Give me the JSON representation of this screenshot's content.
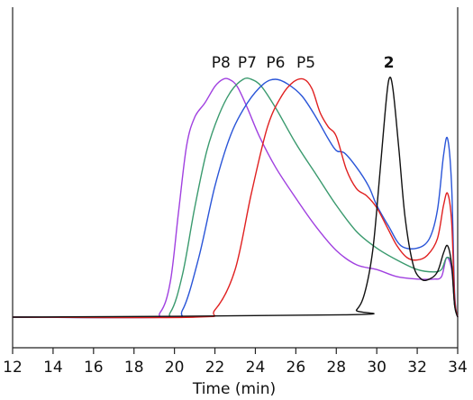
{
  "chart_data": {
    "type": "line",
    "xlabel": "Time (min)",
    "ylabel": "",
    "xlim": [
      12,
      34
    ],
    "ylim": [
      0,
      1.15
    ],
    "x_ticks": [
      12,
      14,
      16,
      18,
      20,
      22,
      24,
      26,
      28,
      30,
      32,
      34
    ],
    "grid": false,
    "legend": "none",
    "annotations": [
      {
        "text": "P8",
        "x": 22.3,
        "bold": false
      },
      {
        "text": "P7",
        "x": 23.6,
        "bold": false
      },
      {
        "text": "P6",
        "x": 25.0,
        "bold": false
      },
      {
        "text": "P5",
        "x": 26.5,
        "bold": false
      },
      {
        "text": "2",
        "x": 30.6,
        "bold": true
      }
    ],
    "series": [
      {
        "name": "P8",
        "color": "#a040e0",
        "x": [
          12,
          18.5,
          19.3,
          19.8,
          20.2,
          20.6,
          21.0,
          21.5,
          22.0,
          22.4,
          22.7,
          23.1,
          23.6,
          24.2,
          25.0,
          26.0,
          27.0,
          28.0,
          29.0,
          30.0,
          31.0,
          32.0,
          32.8,
          33.2,
          33.45,
          33.7,
          33.85,
          34
        ],
        "y": [
          0.0,
          0.0,
          0.02,
          0.15,
          0.44,
          0.72,
          0.84,
          0.9,
          0.97,
          1.0,
          1.0,
          0.97,
          0.88,
          0.76,
          0.63,
          0.5,
          0.38,
          0.28,
          0.22,
          0.2,
          0.17,
          0.16,
          0.16,
          0.17,
          0.25,
          0.2,
          0.05,
          0.0
        ]
      },
      {
        "name": "P7",
        "color": "#3a9a6e",
        "x": [
          12,
          19.0,
          19.8,
          20.4,
          21.0,
          21.6,
          22.2,
          22.8,
          23.4,
          23.8,
          24.3,
          25.0,
          26.0,
          27.0,
          28.0,
          29.0,
          30.0,
          31.0,
          32.0,
          32.8,
          33.2,
          33.45,
          33.7,
          33.85,
          34
        ],
        "y": [
          0.0,
          0.0,
          0.02,
          0.18,
          0.46,
          0.7,
          0.85,
          0.95,
          1.0,
          1.0,
          0.97,
          0.88,
          0.73,
          0.6,
          0.47,
          0.36,
          0.29,
          0.24,
          0.2,
          0.19,
          0.2,
          0.25,
          0.22,
          0.05,
          0.0
        ]
      },
      {
        "name": "P6",
        "color": "#2a55d8",
        "x": [
          12,
          19.6,
          20.4,
          21.2,
          22.0,
          22.8,
          23.6,
          24.4,
          25.0,
          25.6,
          26.3,
          27.0,
          27.6,
          28.0,
          28.4,
          29.0,
          29.6,
          30.0,
          30.6,
          31.2,
          32.0,
          32.6,
          33.0,
          33.3,
          33.5,
          33.7,
          33.85,
          34
        ],
        "y": [
          0.0,
          0.0,
          0.03,
          0.25,
          0.55,
          0.77,
          0.9,
          0.98,
          1.0,
          0.98,
          0.93,
          0.84,
          0.75,
          0.7,
          0.69,
          0.63,
          0.55,
          0.47,
          0.38,
          0.3,
          0.29,
          0.33,
          0.45,
          0.68,
          0.75,
          0.55,
          0.1,
          0.0
        ]
      },
      {
        "name": "P5",
        "color": "#e02020",
        "x": [
          12,
          21.0,
          22.0,
          23.0,
          23.8,
          24.6,
          25.3,
          25.9,
          26.4,
          26.8,
          27.2,
          27.6,
          28.0,
          28.5,
          29.0,
          29.5,
          30.0,
          30.5,
          31.0,
          31.5,
          32.0,
          32.5,
          33.0,
          33.3,
          33.5,
          33.7,
          33.85,
          34
        ],
        "y": [
          0.0,
          0.0,
          0.03,
          0.2,
          0.52,
          0.8,
          0.93,
          0.99,
          1.0,
          0.96,
          0.86,
          0.8,
          0.76,
          0.62,
          0.54,
          0.51,
          0.46,
          0.38,
          0.3,
          0.25,
          0.24,
          0.26,
          0.33,
          0.47,
          0.52,
          0.4,
          0.08,
          0.0
        ]
      },
      {
        "name": "2",
        "color": "#111111",
        "x": [
          12,
          28.5,
          29.0,
          29.4,
          29.8,
          30.1,
          30.4,
          30.6,
          30.8,
          31.1,
          31.4,
          31.8,
          32.2,
          32.6,
          33.0,
          33.3,
          33.5,
          33.7,
          33.85,
          34
        ],
        "y": [
          0.0,
          0.01,
          0.03,
          0.1,
          0.28,
          0.55,
          0.85,
          1.0,
          0.96,
          0.7,
          0.42,
          0.22,
          0.16,
          0.16,
          0.19,
          0.27,
          0.3,
          0.22,
          0.05,
          0.0
        ]
      }
    ]
  }
}
